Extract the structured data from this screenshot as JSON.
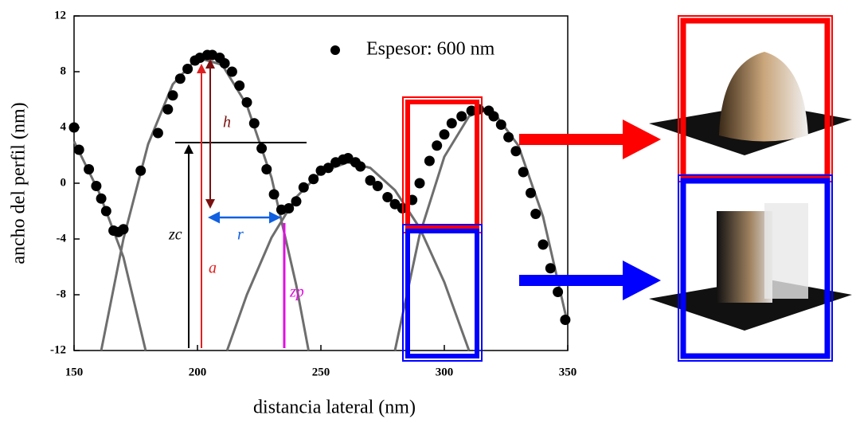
{
  "chart_data": {
    "type": "scatter",
    "xlabel": "distancia lateral (nm)",
    "ylabel": "ancho del perfil (nm)",
    "xlim": [
      150,
      350
    ],
    "xticks": [
      150,
      200,
      250,
      300,
      350
    ],
    "ylim": [
      -12,
      12
    ],
    "yticks": [
      -12,
      -8,
      -4,
      0,
      4,
      8,
      12
    ],
    "legend": "upper right",
    "series": [
      {
        "name": "Espesor: 600 nm",
        "type": "scatter",
        "color": "#000000",
        "x": [
          150,
          152,
          156,
          159,
          161,
          163,
          166,
          168,
          170,
          177,
          184,
          188,
          190,
          193,
          196,
          199,
          201,
          204,
          206,
          209,
          211,
          214,
          217,
          220,
          223,
          226,
          228,
          231,
          234,
          237,
          240,
          243,
          247,
          250,
          253,
          256,
          259,
          261,
          264,
          266,
          270,
          273,
          277,
          280,
          283,
          287,
          290,
          294,
          297,
          300,
          303,
          307,
          311,
          314,
          318,
          320,
          323,
          326,
          329,
          332,
          335,
          337,
          340,
          343,
          346,
          349
        ],
        "values": [
          4,
          2.4,
          1,
          -0.2,
          -1.1,
          -2,
          -3.4,
          -3.5,
          -3.3,
          0.9,
          3.6,
          5.3,
          6.3,
          7.5,
          8.2,
          8.8,
          9,
          9.2,
          9.2,
          9,
          8.6,
          8,
          7,
          5.8,
          4.3,
          2.5,
          1,
          -0.8,
          -1.9,
          -1.8,
          -1.3,
          -0.3,
          0.3,
          0.9,
          1.1,
          1.5,
          1.7,
          1.8,
          1.5,
          1.2,
          0.2,
          -0.2,
          -1,
          -1.5,
          -1.8,
          -1.2,
          0,
          1.6,
          2.7,
          3.5,
          4.3,
          4.8,
          5.2,
          5.3,
          5.2,
          4.8,
          4.2,
          3.3,
          2.3,
          0.8,
          -0.7,
          -2.2,
          -4.4,
          -6.1,
          -7.8,
          -9.8
        ]
      },
      {
        "type": "line",
        "color": "#6e6e6e",
        "x": [
          150,
          160,
          170,
          179
        ],
        "values": [
          3,
          -0.6,
          -5.3,
          -12
        ]
      },
      {
        "type": "line",
        "color": "#6e6e6e",
        "x": [
          161,
          170,
          180,
          190,
          200,
          210,
          220,
          230,
          240,
          245
        ],
        "values": [
          -12,
          -4,
          2.8,
          7.1,
          9,
          8.5,
          5.6,
          0.4,
          -7.3,
          -12
        ]
      },
      {
        "type": "line",
        "color": "#6e6e6e",
        "x": [
          212,
          220,
          230,
          240,
          250,
          261,
          270,
          280,
          290,
          300,
          310
        ],
        "values": [
          -12,
          -8,
          -3.9,
          -1,
          0.8,
          1.5,
          1.1,
          -0.5,
          -3.2,
          -7.1,
          -12
        ]
      },
      {
        "type": "line",
        "color": "#6e6e6e",
        "x": [
          280,
          290,
          300,
          310,
          316,
          320,
          330,
          340,
          350
        ],
        "values": [
          -12,
          -3.7,
          1.9,
          4.8,
          5.3,
          5.1,
          2.7,
          -2.4,
          -10.1
        ]
      }
    ],
    "annotations": [
      "h",
      "r",
      "a",
      "zc",
      "zp"
    ]
  }
}
